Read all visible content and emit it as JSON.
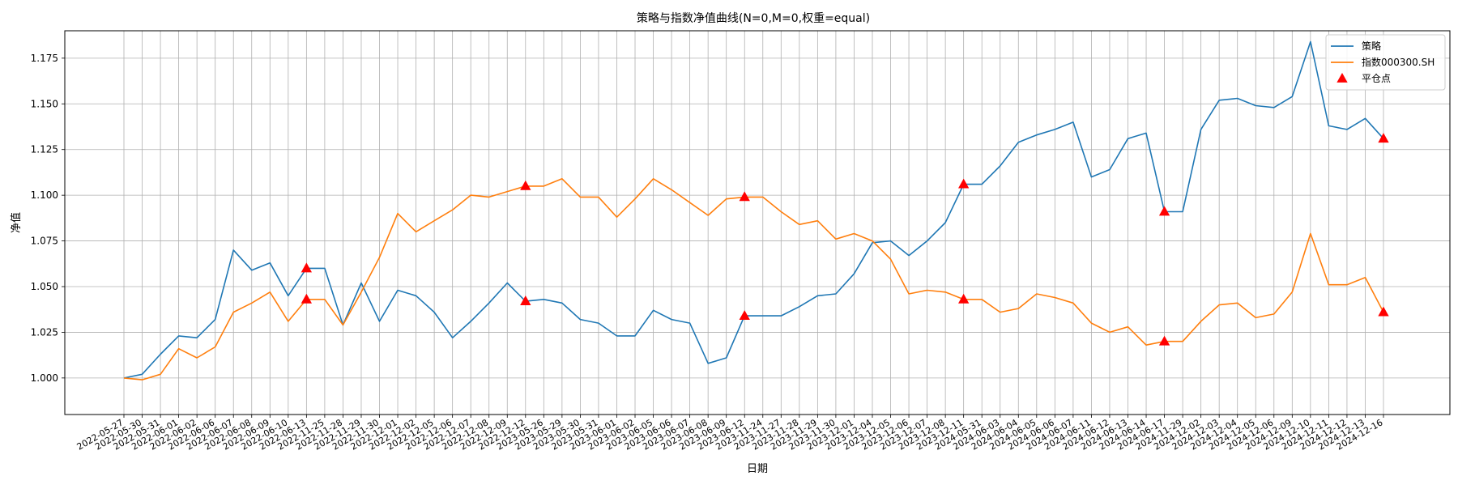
{
  "chart_data": {
    "type": "line",
    "title": "策略与指数净值曲线(N=0,M=0,权重=equal)",
    "xlabel": "日期",
    "ylabel": "净值",
    "ylim": [
      0.98,
      1.19
    ],
    "yticks": [
      1.0,
      1.025,
      1.05,
      1.075,
      1.1,
      1.125,
      1.15,
      1.175
    ],
    "grid": true,
    "legend_position": "top-right",
    "categories": [
      "2022-05-27",
      "2022-05-30",
      "2022-05-31",
      "2022-06-01",
      "2022-06-02",
      "2022-06-06",
      "2022-06-07",
      "2022-06-08",
      "2022-06-09",
      "2022-06-10",
      "2022-06-13",
      "2022-11-25",
      "2022-11-28",
      "2022-11-29",
      "2022-11-30",
      "2022-12-01",
      "2022-12-02",
      "2022-12-05",
      "2022-12-06",
      "2022-12-07",
      "2022-12-08",
      "2022-12-09",
      "2022-12-12",
      "2023-05-26",
      "2023-05-29",
      "2023-05-30",
      "2023-05-31",
      "2023-06-01",
      "2023-06-02",
      "2023-06-05",
      "2023-06-06",
      "2023-06-07",
      "2023-06-08",
      "2023-06-09",
      "2023-06-12",
      "2023-11-24",
      "2023-11-27",
      "2023-11-28",
      "2023-11-29",
      "2023-11-30",
      "2023-12-01",
      "2023-12-04",
      "2023-12-05",
      "2023-12-06",
      "2023-12-07",
      "2023-12-08",
      "2023-12-11",
      "2024-05-31",
      "2024-06-03",
      "2024-06-04",
      "2024-06-05",
      "2024-06-06",
      "2024-06-07",
      "2024-06-11",
      "2024-06-12",
      "2024-06-13",
      "2024-06-14",
      "2024-06-17",
      "2024-11-29",
      "2024-12-02",
      "2024-12-03",
      "2024-12-04",
      "2024-12-05",
      "2024-12-06",
      "2024-12-09",
      "2024-12-10",
      "2024-12-11",
      "2024-12-12",
      "2024-12-13",
      "2024-12-16"
    ],
    "series": [
      {
        "name": "策略",
        "color": "#1f77b4",
        "values": [
          1.0,
          1.002,
          1.013,
          1.023,
          1.022,
          1.032,
          1.07,
          1.059,
          1.063,
          1.045,
          1.06,
          1.06,
          1.029,
          1.052,
          1.031,
          1.048,
          1.045,
          1.036,
          1.022,
          1.031,
          1.041,
          1.052,
          1.042,
          1.043,
          1.041,
          1.032,
          1.03,
          1.023,
          1.023,
          1.037,
          1.032,
          1.03,
          1.008,
          1.011,
          1.034,
          1.034,
          1.034,
          1.039,
          1.045,
          1.046,
          1.057,
          1.074,
          1.075,
          1.067,
          1.075,
          1.085,
          1.106,
          1.106,
          1.116,
          1.129,
          1.133,
          1.136,
          1.14,
          1.11,
          1.114,
          1.131,
          1.134,
          1.091,
          1.091,
          1.136,
          1.152,
          1.153,
          1.149,
          1.148,
          1.154,
          1.184,
          1.138,
          1.136,
          1.142,
          1.131
        ]
      },
      {
        "name": "指数000300.SH",
        "color": "#ff7f0e",
        "values": [
          1.0,
          0.999,
          1.002,
          1.016,
          1.011,
          1.017,
          1.036,
          1.041,
          1.047,
          1.031,
          1.043,
          1.043,
          1.029,
          1.047,
          1.066,
          1.09,
          1.08,
          1.086,
          1.092,
          1.1,
          1.099,
          1.102,
          1.105,
          1.105,
          1.109,
          1.099,
          1.099,
          1.088,
          1.098,
          1.109,
          1.103,
          1.096,
          1.089,
          1.098,
          1.099,
          1.099,
          1.091,
          1.084,
          1.086,
          1.076,
          1.079,
          1.075,
          1.065,
          1.046,
          1.048,
          1.047,
          1.043,
          1.043,
          1.036,
          1.038,
          1.046,
          1.044,
          1.041,
          1.03,
          1.025,
          1.028,
          1.018,
          1.02,
          1.02,
          1.031,
          1.04,
          1.041,
          1.033,
          1.035,
          1.047,
          1.079,
          1.051,
          1.051,
          1.055,
          1.036
        ]
      }
    ],
    "markers": {
      "name": "平仓点",
      "color": "#ff0000",
      "indices": [
        10,
        22,
        34,
        46,
        57,
        69
      ]
    }
  }
}
